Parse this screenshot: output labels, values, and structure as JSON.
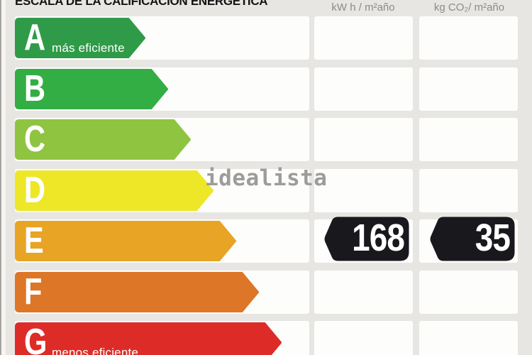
{
  "title": "ESCALA DE LA CALIFICACIÓN ENERGÉTICA",
  "header": {
    "energy_unit": "kW h / m²año",
    "emissions_unit": "kg CO₂/ m²año"
  },
  "watermark": "idealista",
  "ratings": [
    {
      "letter": "A",
      "sublabel": "más eficiente",
      "color": "#2f9b48"
    },
    {
      "letter": "B",
      "sublabel": "",
      "color": "#33ae44"
    },
    {
      "letter": "C",
      "sublabel": "",
      "color": "#8fc441"
    },
    {
      "letter": "D",
      "sublabel": "",
      "color": "#ede728"
    },
    {
      "letter": "E",
      "sublabel": "",
      "color": "#e8a424"
    },
    {
      "letter": "F",
      "sublabel": "",
      "color": "#dd7626"
    },
    {
      "letter": "G",
      "sublabel": "menos eficiente",
      "color": "#dd2c27"
    }
  ],
  "badge_color": "#18181d",
  "chart_data": {
    "type": "bar",
    "title": "ESCALA DE LA CALIFICACIÓN ENERGÉTICA",
    "categories": [
      "A",
      "B",
      "C",
      "D",
      "E",
      "F",
      "G"
    ],
    "bar_colors": [
      "#2f9b48",
      "#33ae44",
      "#8fc441",
      "#ede728",
      "#e8a424",
      "#dd7626",
      "#dd2c27"
    ],
    "annotations": {
      "A": "más eficiente",
      "G": "menos eficiente"
    },
    "columns": [
      "kW h / m²año",
      "kg CO₂/ m²año"
    ],
    "current_rating": "E",
    "values": {
      "energy_kwh_m2_year": 168,
      "co2_kg_m2_year": 35
    },
    "legend_position": "none",
    "grid": false
  }
}
